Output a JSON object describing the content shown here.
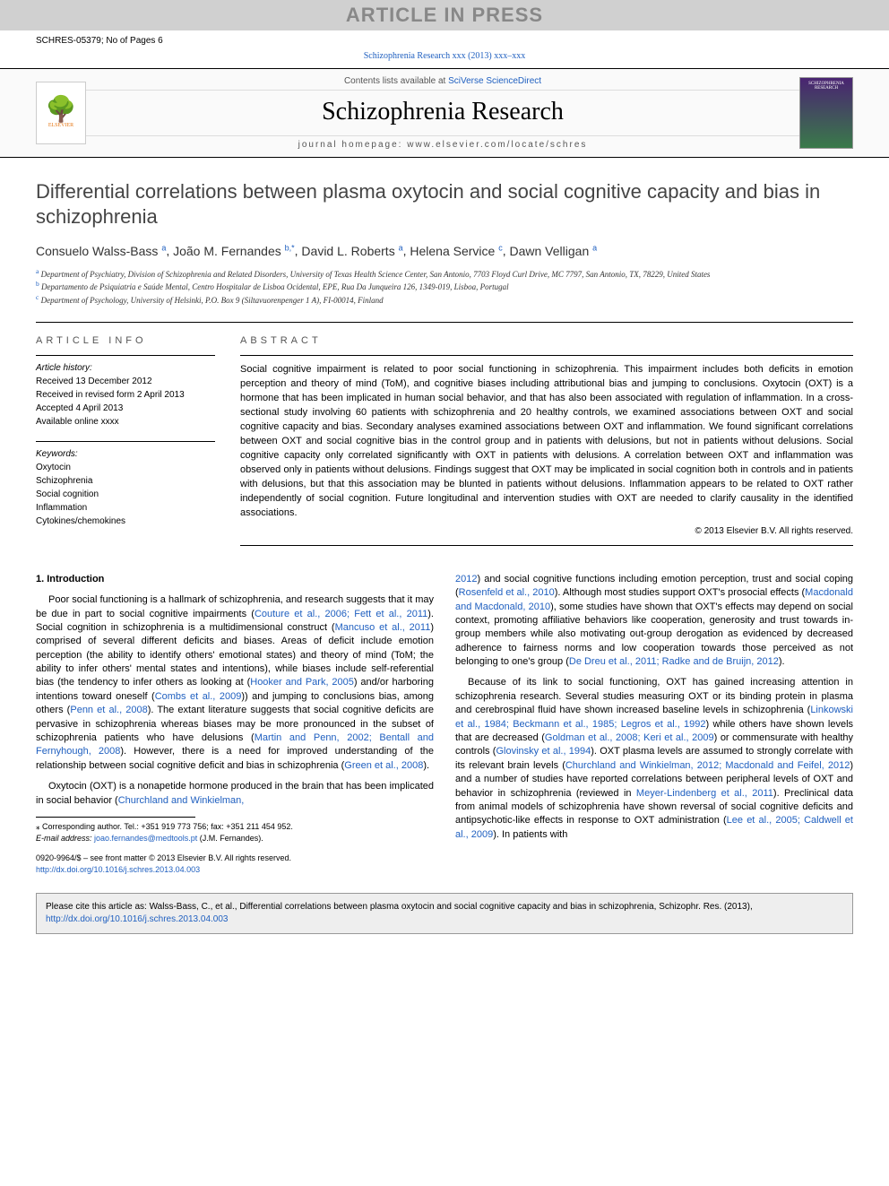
{
  "banner": "ARTICLE IN PRESS",
  "ref": "SCHRES-05379; No of Pages 6",
  "journalLinkText": "Schizophrenia Research xxx (2013) xxx–xxx",
  "contentsLine": "Contents lists available at ",
  "contentsLink": "SciVerse ScienceDirect",
  "journalName": "Schizophrenia Research",
  "homepageLabel": "journal homepage: ",
  "homepageUrl": "www.elsevier.com/locate/schres",
  "elsevierText": "ELSEVIER",
  "coverText": "SCHIZOPHRENIA RESEARCH",
  "title": "Differential correlations between plasma oxytocin and social cognitive capacity and bias in schizophrenia",
  "authors": [
    {
      "name": "Consuelo Walss-Bass",
      "aff": "a"
    },
    {
      "name": "João M. Fernandes",
      "aff": "b,*"
    },
    {
      "name": "David L. Roberts",
      "aff": "a"
    },
    {
      "name": "Helena Service",
      "aff": "c"
    },
    {
      "name": "Dawn Velligan",
      "aff": "a"
    }
  ],
  "affiliations": {
    "a": "Department of Psychiatry, Division of Schizophrenia and Related Disorders, University of Texas Health Science Center, San Antonio, 7703 Floyd Curl Drive, MC 7797, San Antonio, TX, 78229, United States",
    "b": "Departamento de Psiquiatria e Saúde Mental, Centro Hospitalar de Lisboa Ocidental, EPE, Rua Da Junqueira 126, 1349-019, Lisboa, Portugal",
    "c": "Department of Psychology, University of Helsinki, P.O. Box 9 (Siltavuorenpenger 1 A), FI-00014, Finland"
  },
  "infoHeading": "ARTICLE INFO",
  "history": {
    "label": "Article history:",
    "received": "Received 13 December 2012",
    "revised": "Received in revised form 2 April 2013",
    "accepted": "Accepted 4 April 2013",
    "online": "Available online xxxx"
  },
  "keywordsLabel": "Keywords:",
  "keywords": [
    "Oxytocin",
    "Schizophrenia",
    "Social cognition",
    "Inflammation",
    "Cytokines/chemokines"
  ],
  "abstractHeading": "ABSTRACT",
  "abstract": "Social cognitive impairment is related to poor social functioning in schizophrenia. This impairment includes both deficits in emotion perception and theory of mind (ToM), and cognitive biases including attributional bias and jumping to conclusions. Oxytocin (OXT) is a hormone that has been implicated in human social behavior, and that has also been associated with regulation of inflammation. In a cross-sectional study involving 60 patients with schizophrenia and 20 healthy controls, we examined associations between OXT and social cognitive capacity and bias. Secondary analyses examined associations between OXT and inflammation. We found significant correlations between OXT and social cognitive bias in the control group and in patients with delusions, but not in patients without delusions. Social cognitive capacity only correlated significantly with OXT in patients with delusions. A correlation between OXT and inflammation was observed only in patients without delusions. Findings suggest that OXT may be implicated in social cognition both in controls and in patients with delusions, but that this association may be blunted in patients without delusions. Inflammation appears to be related to OXT rather independently of social cognition. Future longitudinal and intervention studies with OXT are needed to clarify causality in the identified associations.",
  "abstractCopyright": "© 2013 Elsevier B.V. All rights reserved.",
  "introHeading": "1. Introduction",
  "para1a": "Poor social functioning is a hallmark of schizophrenia, and research suggests that it may be due in part to social cognitive impairments (",
  "ref1": "Couture et al., 2006; Fett et al., 2011",
  "para1b": "). Social cognition in schizophrenia is a multidimensional construct (",
  "ref2": "Mancuso et al., 2011",
  "para1c": ") comprised of several different deficits and biases. Areas of deficit include emotion perception (the ability to identify others' emotional states) and theory of mind (ToM; the ability to infer others' mental states and intentions), while biases include self-referential bias (the tendency to infer others as looking at (",
  "ref3": "Hooker and Park, 2005",
  "para1d": ") and/or harboring intentions toward oneself (",
  "ref4": "Combs et al., 2009",
  "para1e": ")) and jumping to conclusions bias, among others (",
  "ref5": "Penn et al., 2008",
  "para1f": "). The extant literature suggests that social cognitive deficits are pervasive in schizophrenia whereas biases may be more pronounced in the subset of schizophrenia patients who have delusions (",
  "ref6": "Martin and Penn, 2002; Bentall and Fernyhough, 2008",
  "para1g": "). However, there is a need for improved understanding of the relationship between social cognitive deficit and bias in schizophrenia (",
  "ref7": "Green et al., 2008",
  "para1h": ").",
  "para2a": "Oxytocin (OXT) is a nonapetide hormone produced in the brain that has been implicated in social behavior (",
  "ref8": "Churchland and Winkielman, ",
  "corrLabel": "⁎ Corresponding author. Tel.: +351 919 773 756; fax: +351 211 454 952.",
  "emailLabel": "E-mail address: ",
  "emailLink": "joao.fernandes@medtools.pt",
  "emailSuffix": " (J.M. Fernandes).",
  "frontMatter": "0920-9964/$ – see front matter © 2013 Elsevier B.V. All rights reserved.",
  "doiLink": "http://dx.doi.org/10.1016/j.schres.2013.04.003",
  "ref9": "2012",
  "para3a": ") and social cognitive functions including emotion perception, trust and social coping (",
  "ref10": "Rosenfeld et al., 2010",
  "para3b": "). Although most studies support OXT's prosocial effects (",
  "ref11": "Macdonald and Macdonald, 2010",
  "para3c": "), some studies have shown that OXT's effects may depend on social context, promoting affiliative behaviors like cooperation, generosity and trust towards in-group members while also motivating out-group derogation as evidenced by decreased adherence to fairness norms and low cooperation towards those perceived as not belonging to one's group (",
  "ref12": "De Dreu et al., 2011; Radke and de Bruijn, 2012",
  "para3d": ").",
  "para4a": "Because of its link to social functioning, OXT has gained increasing attention in schizophrenia research. Several studies measuring OXT or its binding protein in plasma and cerebrospinal fluid have shown increased baseline levels in schizophrenia (",
  "ref13": "Linkowski et al., 1984; Beckmann et al., 1985; Legros et al., 1992",
  "para4b": ") while others have shown levels that are decreased (",
  "ref14": "Goldman et al., 2008; Keri et al., 2009",
  "para4c": ") or commensurate with healthy controls (",
  "ref15": "Glovinsky et al., 1994",
  "para4d": "). OXT plasma levels are assumed to strongly correlate with its relevant brain levels (",
  "ref16": "Churchland and Winkielman, 2012; Macdonald and Feifel, 2012",
  "para4e": ") and a number of studies have reported correlations between peripheral levels of OXT and behavior in schizophrenia (reviewed in ",
  "ref17": "Meyer-Lindenberg et al., 2011",
  "para4f": "). Preclinical data from animal models of schizophrenia have shown reversal of social cognitive deficits and antipsychotic-like effects in response to OXT administration (",
  "ref18": "Lee et al., 2005; Caldwell et al., 2009",
  "para4g": "). In patients with",
  "citeText": "Please cite this article as: Walss-Bass, C., et al., Differential correlations between plasma oxytocin and social cognitive capacity and bias in schizophrenia, Schizophr. Res. (2013), ",
  "citeLink": "http://dx.doi.org/10.1016/j.schres.2013.04.003"
}
